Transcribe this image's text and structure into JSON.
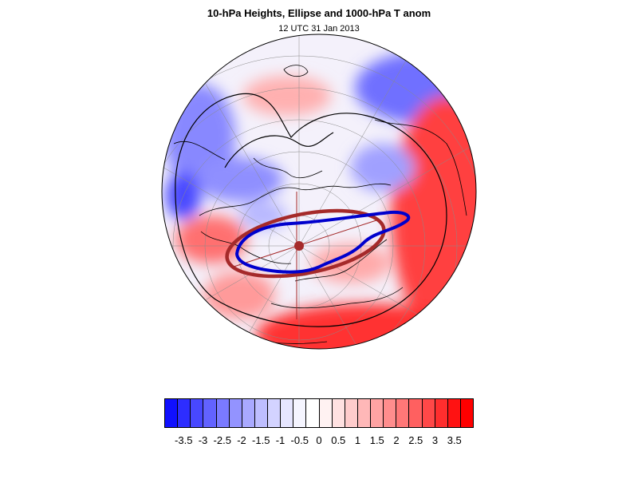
{
  "figure": {
    "title": "10-hPa Heights, Ellipse and 1000-hPa T anom",
    "subtitle": "12 UTC 31 Jan 2013"
  },
  "colors": {
    "contour": "#000000",
    "ellipse": "#a52a2a",
    "vortex_edge": "#0000cd",
    "cold": "#0000ff",
    "warm": "#ff0000"
  },
  "colorbar": {
    "labels": [
      "-3.5",
      "-3",
      "-2.5",
      "-2",
      "-1.5",
      "-1",
      "-0.5",
      "0",
      "0.5",
      "1",
      "1.5",
      "2",
      "2.5",
      "3",
      "3.5"
    ],
    "colors": [
      "#1010ff",
      "#2d2dff",
      "#4848ff",
      "#6262ff",
      "#7a7aff",
      "#9393ff",
      "#a9a9ff",
      "#bebeff",
      "#d3d3ff",
      "#e6e6ff",
      "#f5f5ff",
      "#ffffff",
      "#fff2f2",
      "#ffe1e1",
      "#ffcccc",
      "#ffb8b8",
      "#ffa3a3",
      "#ff8d8d",
      "#ff7777",
      "#ff6060",
      "#ff4848",
      "#ff2e2e",
      "#ff1212",
      "#ff0000"
    ]
  }
}
